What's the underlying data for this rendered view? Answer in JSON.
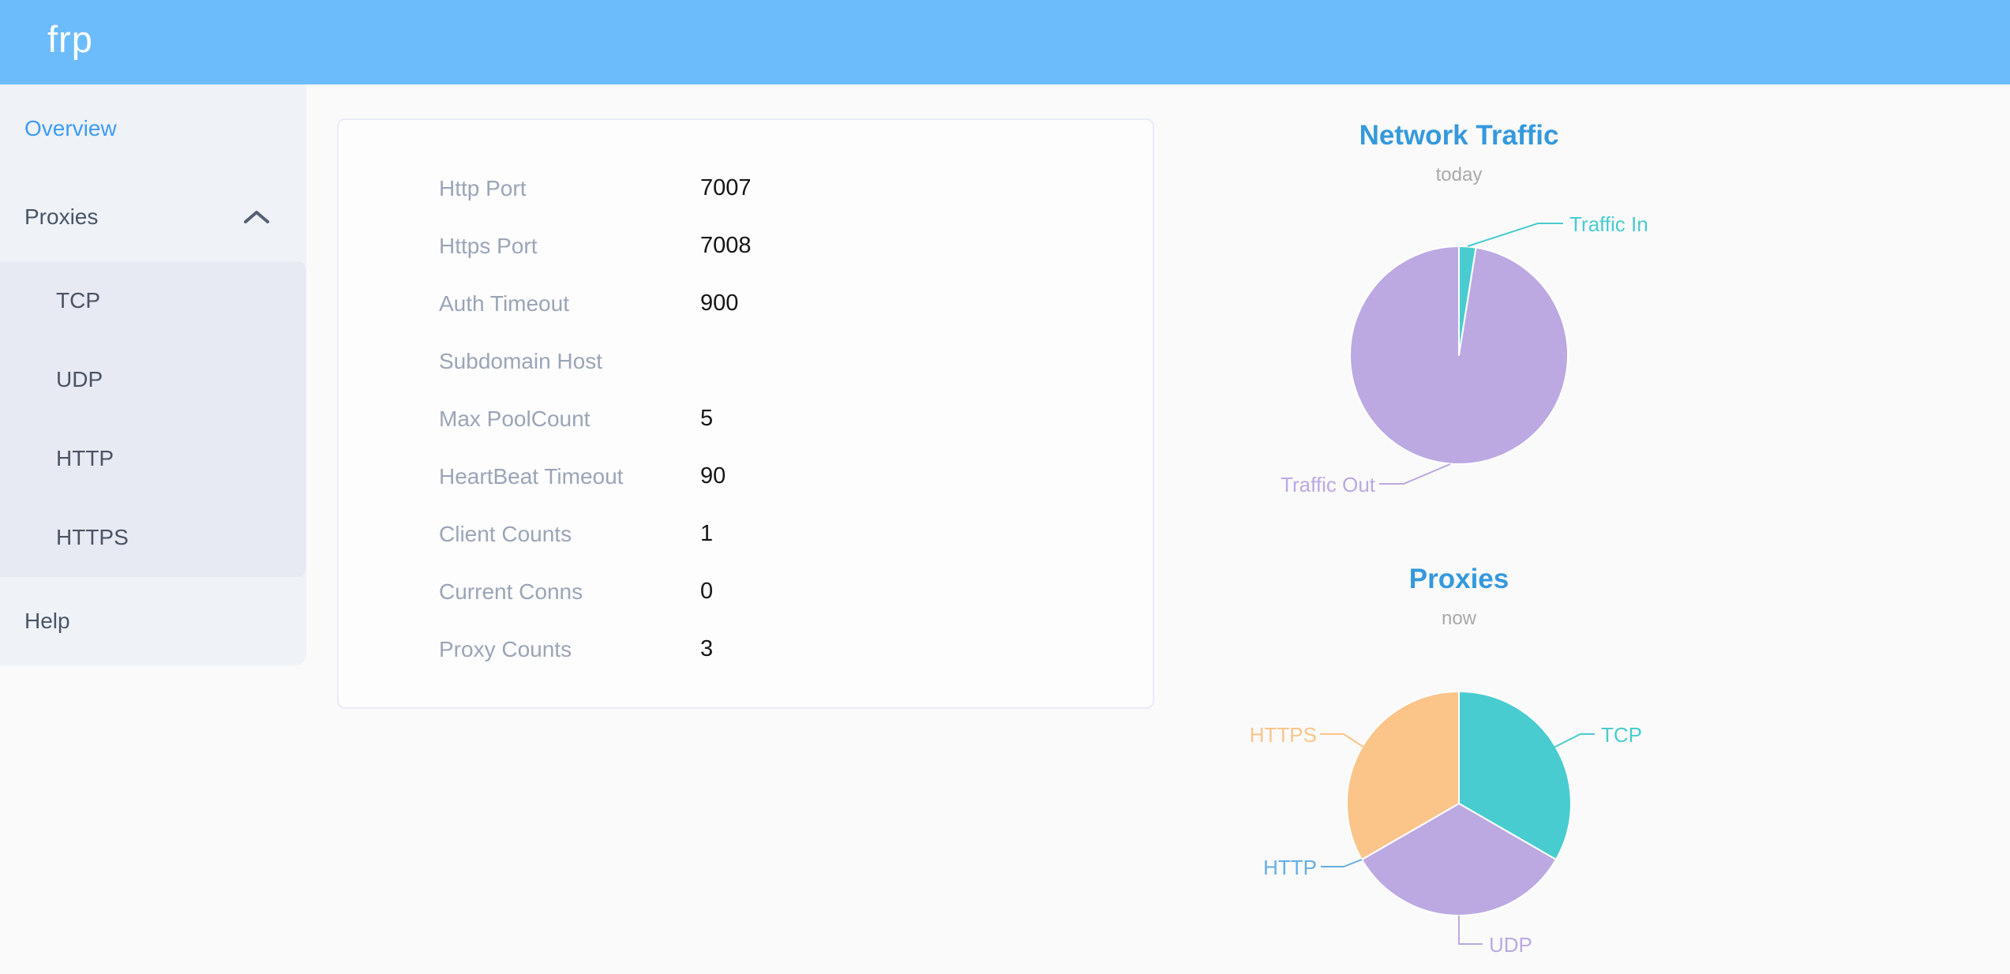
{
  "header": {
    "logo": "frp"
  },
  "sidebar": {
    "items": [
      {
        "label": "Overview",
        "active": true
      },
      {
        "label": "Proxies",
        "expanded": true
      },
      {
        "label": "TCP"
      },
      {
        "label": "UDP"
      },
      {
        "label": "HTTP"
      },
      {
        "label": "HTTPS"
      },
      {
        "label": "Help"
      }
    ]
  },
  "overview_card": {
    "rows": [
      {
        "label": "Http Port",
        "value": "7007"
      },
      {
        "label": "Https Port",
        "value": "7008"
      },
      {
        "label": "Auth Timeout",
        "value": "900"
      },
      {
        "label": "Subdomain Host",
        "value": ""
      },
      {
        "label": "Max PoolCount",
        "value": "5"
      },
      {
        "label": "HeartBeat Timeout",
        "value": "90"
      },
      {
        "label": "Client Counts",
        "value": "1"
      },
      {
        "label": "Current Conns",
        "value": "0"
      },
      {
        "label": "Proxy Counts",
        "value": "3"
      }
    ]
  },
  "chart_data": [
    {
      "type": "pie",
      "title": "Network Traffic",
      "subtitle": "today",
      "labels": [
        "Traffic In",
        "Traffic Out"
      ],
      "values": [
        2.5,
        97.5
      ],
      "unit": "percent_of_circle_estimated",
      "colors": [
        "#49ccd0",
        "#bca9e2"
      ],
      "legend_position": "callout-labels"
    },
    {
      "type": "pie",
      "title": "Proxies",
      "subtitle": "now",
      "labels": [
        "TCP",
        "UDP",
        "HTTP",
        "HTTPS"
      ],
      "values": [
        1,
        1,
        0,
        1
      ],
      "colors": [
        "#49ccd0",
        "#bca9e2",
        "#64aee4",
        "#fbc489"
      ],
      "legend_position": "callout-labels"
    }
  ],
  "colors": {
    "header": "#6cbcfc",
    "sidebar_bg": "#eff2f7",
    "submenu_bg": "#e7eaf2",
    "page_bg": "#fafafa",
    "active_link": "#3d9cf5",
    "chart_title": "#3599dc",
    "teal": "#49ccd0",
    "purple": "#bca9e2",
    "orange": "#fbc489",
    "http_blue": "#64aee4"
  }
}
